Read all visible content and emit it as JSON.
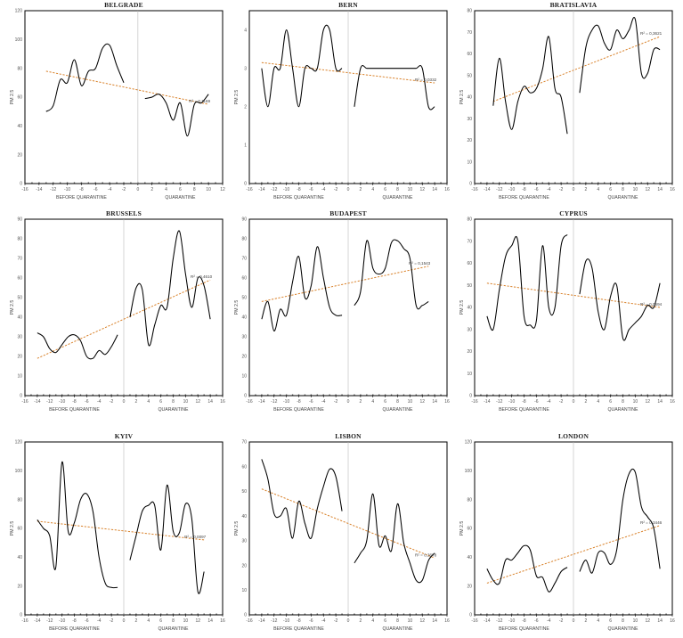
{
  "chart_data": [
    {
      "type": "line",
      "title": "BELGRADE",
      "ylabel": "PM 2.5",
      "xlim": [
        -16,
        12
      ],
      "ylim": [
        0,
        120
      ],
      "xticks": [
        -16,
        -14,
        -12,
        -10,
        -8,
        -6,
        -4,
        -2,
        0,
        2,
        4,
        6,
        8,
        10,
        12
      ],
      "yticks": [
        0,
        20,
        40,
        60,
        80,
        100,
        120
      ],
      "xlabels": [
        "BEFORE QUARANTINE",
        "QUARANTINE"
      ],
      "series": [
        {
          "x": [
            -13,
            -12,
            -11,
            -10,
            -9,
            -8,
            -7,
            -6,
            -5,
            -4,
            -3,
            -2
          ],
          "y": [
            50,
            54,
            72,
            70,
            86,
            68,
            78,
            80,
            94,
            96,
            82,
            70
          ]
        },
        {
          "x": [
            1,
            2,
            3,
            4,
            5,
            6,
            7,
            8,
            9,
            10
          ],
          "y": [
            59,
            60,
            62,
            56,
            44,
            56,
            33,
            55,
            56,
            62
          ]
        }
      ],
      "trend": {
        "x0": -13,
        "y0": 78,
        "x1": 10,
        "y1": 55
      },
      "r2": "R² = 0,1169"
    },
    {
      "type": "line",
      "title": "BERN",
      "ylabel": "PM 2.5",
      "xlim": [
        -16,
        16
      ],
      "ylim": [
        0,
        4.5
      ],
      "xticks": [
        -16,
        -14,
        -12,
        -10,
        -8,
        -6,
        -4,
        -2,
        0,
        2,
        4,
        6,
        8,
        10,
        12,
        14,
        16
      ],
      "yticks": [
        0,
        0.5,
        1,
        1.5,
        2,
        2.5,
        3,
        3.5,
        4,
        4.5
      ],
      "ytickfmt": "half",
      "xlabels": [
        "BEFORE QUARANTINE",
        "QUARANTINE"
      ],
      "series": [
        {
          "x": [
            -14,
            -13,
            -12,
            -11,
            -10,
            -9,
            -8,
            -7,
            -6,
            -5,
            -4,
            -3,
            -2,
            -1
          ],
          "y": [
            3,
            2,
            3,
            3,
            4,
            3,
            2,
            3,
            3,
            3,
            4,
            4,
            3,
            3
          ]
        },
        {
          "x": [
            1,
            2,
            3,
            4,
            5,
            6,
            7,
            8,
            9,
            10,
            11,
            12,
            13,
            14
          ],
          "y": [
            2,
            3,
            3,
            3,
            3,
            3,
            3,
            3,
            3,
            3,
            3,
            3,
            2,
            2
          ]
        }
      ],
      "trend": {
        "x0": -14,
        "y0": 3.15,
        "x1": 14,
        "y1": 2.62
      },
      "r2": "R² = 0,0332"
    },
    {
      "type": "line",
      "title": "BRATISLAVIA",
      "ylabel": "PM 2.5",
      "xlim": [
        -16,
        16
      ],
      "ylim": [
        0,
        80
      ],
      "xticks": [
        -16,
        -14,
        -12,
        -10,
        -8,
        -6,
        -4,
        -2,
        0,
        2,
        4,
        6,
        8,
        10,
        12,
        14,
        16
      ],
      "yticks": [
        0,
        10,
        20,
        30,
        40,
        50,
        60,
        70,
        80
      ],
      "xlabels": [
        "BEFORE QUARANTINE",
        "QUARANTINE"
      ],
      "series": [
        {
          "x": [
            -13,
            -12,
            -11,
            -10,
            -9,
            -8,
            -7,
            -6,
            -5,
            -4,
            -3,
            -2,
            -1
          ],
          "y": [
            36,
            58,
            38,
            25,
            38,
            45,
            42,
            44,
            53,
            68,
            44,
            40,
            23
          ]
        },
        {
          "x": [
            1,
            2,
            3,
            4,
            5,
            6,
            7,
            8,
            9,
            10,
            11,
            12,
            13,
            14
          ],
          "y": [
            42,
            63,
            71,
            73,
            65,
            62,
            71,
            67,
            71,
            76,
            51,
            51,
            62,
            62
          ]
        }
      ],
      "trend": {
        "x0": -13,
        "y0": 38,
        "x1": 14,
        "y1": 68
      },
      "r2": "R² = 0,3621"
    },
    {
      "type": "line",
      "title": "BRUSSELS",
      "ylabel": "PM 2.5",
      "xlim": [
        -16,
        16
      ],
      "ylim": [
        0,
        90
      ],
      "xticks": [
        -16,
        -14,
        -12,
        -10,
        -8,
        -6,
        -4,
        -2,
        0,
        2,
        4,
        6,
        8,
        10,
        12,
        14,
        16
      ],
      "yticks": [
        0,
        10,
        20,
        30,
        40,
        50,
        60,
        70,
        80,
        90
      ],
      "xlabels": [
        "BEFORE QUARANTINE",
        "QUARANTINE"
      ],
      "series": [
        {
          "x": [
            -14,
            -13,
            -12,
            -11,
            -10,
            -9,
            -8,
            -7,
            -6,
            -5,
            -4,
            -3,
            -2,
            -1
          ],
          "y": [
            32,
            30,
            24,
            22,
            26,
            30,
            31,
            28,
            20,
            19,
            23,
            21,
            25,
            31
          ]
        },
        {
          "x": [
            1,
            2,
            3,
            4,
            5,
            6,
            7,
            8,
            9,
            10,
            11,
            12,
            13,
            14
          ],
          "y": [
            40,
            55,
            54,
            26,
            36,
            46,
            45,
            70,
            84,
            62,
            45,
            60,
            56,
            39
          ]
        }
      ],
      "trend": {
        "x0": -14,
        "y0": 19,
        "x1": 14,
        "y1": 59
      },
      "r2": "R² = 0,4610"
    },
    {
      "type": "line",
      "title": "BUDAPEST",
      "ylabel": "PM 2.5",
      "xlim": [
        -16,
        16
      ],
      "ylim": [
        0,
        90
      ],
      "xticks": [
        -16,
        -14,
        -12,
        -10,
        -8,
        -6,
        -4,
        -2,
        0,
        2,
        4,
        6,
        8,
        10,
        12,
        14,
        16
      ],
      "yticks": [
        0,
        10,
        20,
        30,
        40,
        50,
        60,
        70,
        80,
        90
      ],
      "xlabels": [
        "BEFORE QUARANTINE",
        "QUARANTINE"
      ],
      "series": [
        {
          "x": [
            -14,
            -13,
            -12,
            -11,
            -10,
            -9,
            -8,
            -7,
            -6,
            -5,
            -4,
            -3,
            -2,
            -1
          ],
          "y": [
            39,
            48,
            33,
            44,
            41,
            58,
            71,
            50,
            56,
            76,
            60,
            45,
            41,
            41
          ]
        },
        {
          "x": [
            1,
            2,
            3,
            4,
            5,
            6,
            7,
            8,
            9,
            10,
            11,
            12,
            13
          ],
          "y": [
            46,
            53,
            79,
            65,
            62,
            65,
            78,
            79,
            75,
            70,
            46,
            46,
            48
          ]
        }
      ],
      "trend": {
        "x0": -14,
        "y0": 48,
        "x1": 13,
        "y1": 66
      },
      "r2": "R² = 0,1543"
    },
    {
      "type": "line",
      "title": "CYPRUS",
      "ylabel": "PM 2.5",
      "xlim": [
        -16,
        16
      ],
      "ylim": [
        0,
        80
      ],
      "xticks": [
        -16,
        -14,
        -12,
        -10,
        -8,
        -6,
        -4,
        -2,
        0,
        2,
        4,
        6,
        8,
        10,
        12,
        14,
        16
      ],
      "yticks": [
        0,
        10,
        20,
        30,
        40,
        50,
        60,
        70,
        80
      ],
      "xlabels": [
        "BEFORE QUARANTINE",
        "QUARANTINE"
      ],
      "series": [
        {
          "x": [
            -14,
            -13,
            -12,
            -11,
            -10,
            -9,
            -8,
            -7,
            -6,
            -5,
            -4,
            -3,
            -2,
            -1
          ],
          "y": [
            36,
            30,
            48,
            63,
            68,
            70,
            36,
            32,
            34,
            68,
            40,
            40,
            68,
            73
          ]
        },
        {
          "x": [
            1,
            2,
            3,
            4,
            5,
            6,
            7,
            8,
            9,
            10,
            11,
            12,
            13,
            14
          ],
          "y": [
            46,
            61,
            58,
            38,
            30,
            45,
            50,
            26,
            30,
            33,
            36,
            41,
            40,
            51
          ]
        }
      ],
      "trend": {
        "x0": -14,
        "y0": 51,
        "x1": 14,
        "y1": 40
      },
      "r2": "R² = 0,0694"
    },
    {
      "type": "line",
      "title": "KYIV",
      "ylabel": "PM 2.5",
      "xlim": [
        -16,
        16
      ],
      "ylim": [
        0,
        120
      ],
      "xticks": [
        -16,
        -14,
        -12,
        -10,
        -8,
        -6,
        -4,
        -2,
        0,
        2,
        4,
        6,
        8,
        10,
        12,
        14,
        16
      ],
      "yticks": [
        0,
        20,
        40,
        60,
        80,
        100,
        120
      ],
      "xlabels": [
        "BEFORE QUARANTINE",
        "QUARANTINE"
      ],
      "series": [
        {
          "x": [
            -14,
            -13,
            -12,
            -11,
            -10,
            -9,
            -8,
            -7,
            -6,
            -5,
            -4,
            -3,
            -2,
            -1
          ],
          "y": [
            66,
            60,
            55,
            33,
            106,
            58,
            64,
            80,
            84,
            72,
            40,
            22,
            19,
            19
          ]
        },
        {
          "x": [
            1,
            2,
            3,
            4,
            5,
            6,
            7,
            8,
            9,
            10,
            11,
            12,
            13
          ],
          "y": [
            38,
            55,
            72,
            76,
            76,
            45,
            90,
            58,
            57,
            77,
            67,
            16,
            30
          ]
        }
      ],
      "trend": {
        "x0": -14,
        "y0": 65,
        "x1": 13,
        "y1": 52
      },
      "r2": "R² = 0,0097"
    },
    {
      "type": "line",
      "title": "LISBON",
      "ylabel": "PM 2.5",
      "xlim": [
        -16,
        16
      ],
      "ylim": [
        0,
        70
      ],
      "xticks": [
        -16,
        -14,
        -12,
        -10,
        -8,
        -6,
        -4,
        -2,
        0,
        2,
        4,
        6,
        8,
        10,
        12,
        14,
        16
      ],
      "yticks": [
        0,
        10,
        20,
        30,
        40,
        50,
        60,
        70
      ],
      "xlabels": [
        "BEFORE QUARANTINE",
        "QUARANTINE"
      ],
      "series": [
        {
          "x": [
            -14,
            -13,
            -12,
            -11,
            -10,
            -9,
            -8,
            -7,
            -6,
            -5,
            -4,
            -3,
            -2,
            -1
          ],
          "y": [
            63,
            55,
            41,
            40,
            43,
            31,
            46,
            37,
            31,
            43,
            52,
            59,
            56,
            42
          ]
        },
        {
          "x": [
            1,
            2,
            3,
            4,
            5,
            6,
            7,
            8,
            9,
            10,
            11,
            12,
            13,
            14
          ],
          "y": [
            21,
            25,
            30,
            49,
            28,
            32,
            26,
            45,
            29,
            21,
            14,
            14,
            22,
            25
          ]
        }
      ],
      "trend": {
        "x0": -14,
        "y0": 51,
        "x1": 14,
        "y1": 23
      },
      "r2": "R² = 0,3678"
    },
    {
      "type": "line",
      "title": "LONDON",
      "ylabel": "PM 2.5",
      "xlim": [
        -16,
        16
      ],
      "ylim": [
        0,
        120
      ],
      "xticks": [
        -16,
        -14,
        -12,
        -10,
        -8,
        -6,
        -4,
        -2,
        0,
        2,
        4,
        6,
        8,
        10,
        12,
        14,
        16
      ],
      "yticks": [
        0,
        20,
        40,
        60,
        80,
        100,
        120
      ],
      "xlabels": [
        "BEFORE QUARANTINE",
        "QUARANTINE"
      ],
      "series": [
        {
          "x": [
            -14,
            -13,
            -12,
            -11,
            -10,
            -9,
            -8,
            -7,
            -6,
            -5,
            -4,
            -3,
            -2,
            -1
          ],
          "y": [
            32,
            24,
            22,
            38,
            38,
            43,
            48,
            45,
            27,
            26,
            16,
            22,
            30,
            33
          ]
        },
        {
          "x": [
            1,
            2,
            3,
            4,
            5,
            6,
            7,
            8,
            9,
            10,
            11,
            12,
            13,
            14
          ],
          "y": [
            30,
            38,
            29,
            43,
            43,
            35,
            45,
            80,
            98,
            99,
            75,
            68,
            60,
            32
          ]
        }
      ],
      "trend": {
        "x0": -14,
        "y0": 22,
        "x1": 14,
        "y1": 62
      },
      "r2": "R² = 0,3446"
    }
  ]
}
